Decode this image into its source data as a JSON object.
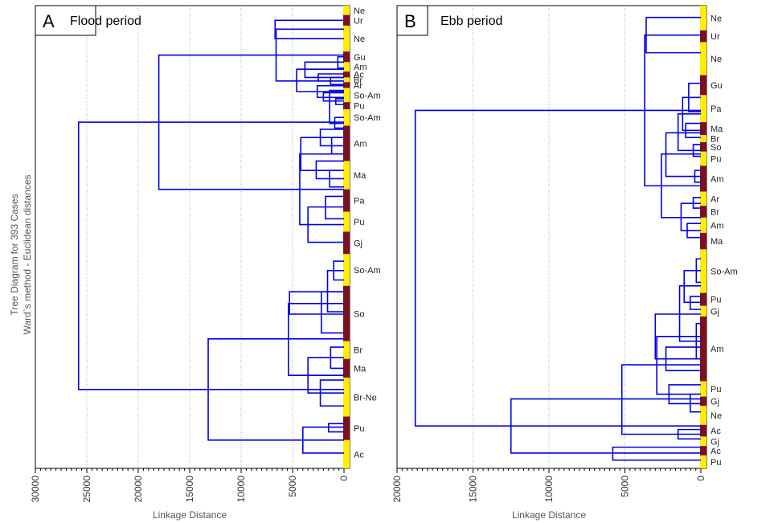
{
  "y_axis_label_line1": "Tree Diagram for 393 Cases",
  "y_axis_label_line2": "Ward`s method - Euclidean distances",
  "colors": {
    "line": "#0000e0",
    "yellow": "#ffee00",
    "maroon": "#7b1020"
  },
  "chart_data": [
    {
      "type": "dendrogram",
      "panel_letter": "A",
      "title": "Flood period",
      "xlabel": "Linkage Distance",
      "xlim": [
        30000,
        0
      ],
      "ticks": [
        30000,
        25000,
        20000,
        15000,
        10000,
        5000,
        0
      ],
      "tick_labels": [
        "30000",
        "25000",
        "20000",
        "15000",
        "10000",
        "5000",
        "0"
      ],
      "grid": "vertical dotted",
      "leaf_groups": [
        {
          "label": "Ne",
          "cases_from": 0,
          "cases_to": 8
        },
        {
          "label": "Ur",
          "cases_from": 8,
          "cases_to": 17
        },
        {
          "label": "Ne",
          "cases_from": 17,
          "cases_to": 39
        },
        {
          "label": "Gu",
          "cases_from": 39,
          "cases_to": 48
        },
        {
          "label": "Am",
          "cases_from": 48,
          "cases_to": 56
        },
        {
          "label": "Ac",
          "cases_from": 56,
          "cases_to": 61
        },
        {
          "label": "Br",
          "cases_from": 61,
          "cases_to": 65
        },
        {
          "label": "Ar",
          "cases_from": 65,
          "cases_to": 70
        },
        {
          "label": "So-Am",
          "cases_from": 70,
          "cases_to": 82
        },
        {
          "label": "Pu",
          "cases_from": 82,
          "cases_to": 88
        },
        {
          "label": "So-Am",
          "cases_from": 88,
          "cases_to": 102
        },
        {
          "label": "Am",
          "cases_from": 102,
          "cases_to": 132
        },
        {
          "label": "Ma",
          "cases_from": 132,
          "cases_to": 156
        },
        {
          "label": "Pa",
          "cases_from": 156,
          "cases_to": 175
        },
        {
          "label": "Pu",
          "cases_from": 175,
          "cases_to": 192
        },
        {
          "label": "Gj",
          "cases_from": 192,
          "cases_to": 211
        },
        {
          "label": "So-Am",
          "cases_from": 211,
          "cases_to": 238
        },
        {
          "label": "So",
          "cases_from": 238,
          "cases_to": 285
        },
        {
          "label": "Br",
          "cases_from": 285,
          "cases_to": 300
        },
        {
          "label": "Ma",
          "cases_from": 300,
          "cases_to": 316
        },
        {
          "label": "Br-Ne",
          "cases_from": 316,
          "cases_to": 349
        },
        {
          "label": "Pu",
          "cases_from": 349,
          "cases_to": 369
        },
        {
          "label": "Ac",
          "cases_from": 369,
          "cases_to": 393
        }
      ],
      "links": [
        {
          "y": [
            12.5,
            28
          ],
          "h": 6700
        },
        {
          "y": [
            43.5,
            53
          ],
          "h": 600
        },
        {
          "y": [
            61,
            67
          ],
          "h": 1300
        },
        {
          "y": [
            58,
            64
          ],
          "h": 2500
        },
        {
          "y": [
            48,
            61
          ],
          "h": 3800
        },
        {
          "y": [
            79,
            84
          ],
          "h": 800
        },
        {
          "y": [
            74,
            81
          ],
          "h": 2000
        },
        {
          "y": [
            68,
            78
          ],
          "h": 2600
        },
        {
          "y": [
            54,
            73
          ],
          "h": 4600
        },
        {
          "y": [
            20,
            64
          ],
          "h": 6600
        },
        {
          "y": [
            95,
            104
          ],
          "h": 900
        },
        {
          "y": [
            72,
            100
          ],
          "h": 1400
        },
        {
          "y": [
            112,
            126
          ],
          "h": 1200
        },
        {
          "y": [
            105,
            119
          ],
          "h": 2300
        },
        {
          "y": [
            140,
            154
          ],
          "h": 1400
        },
        {
          "y": [
            132,
            147
          ],
          "h": 2700
        },
        {
          "y": [
            112,
            140
          ],
          "h": 4200
        },
        {
          "y": [
            162,
            181
          ],
          "h": 1800
        },
        {
          "y": [
            171,
            201
          ],
          "h": 3500
        },
        {
          "y": [
            126,
            186
          ],
          "h": 4300
        },
        {
          "y": [
            42,
            156
          ],
          "h": 18000
        },
        {
          "y": [
            217,
            233
          ],
          "h": 1000
        },
        {
          "y": [
            225,
            260
          ],
          "h": 1600
        },
        {
          "y": [
            243,
            278
          ],
          "h": 2200
        },
        {
          "y": [
            243,
            262
          ],
          "h": 5300
        },
        {
          "y": [
            290,
            308
          ],
          "h": 1300
        },
        {
          "y": [
            318,
            340
          ],
          "h": 2300
        },
        {
          "y": [
            299,
            329
          ],
          "h": 3500
        },
        {
          "y": [
            253,
            314
          ],
          "h": 5400
        },
        {
          "y": [
            355,
            362
          ],
          "h": 1500
        },
        {
          "y": [
            358,
            380
          ],
          "h": 4000
        },
        {
          "y": [
            283,
            369
          ],
          "h": 13200
        },
        {
          "y": [
            99,
            326
          ],
          "h": 25800
        }
      ]
    },
    {
      "type": "dendrogram",
      "panel_letter": "B",
      "title": "Ebb period",
      "xlabel": "Linkage Distance",
      "xlim": [
        20000,
        0
      ],
      "ticks": [
        20000,
        15000,
        10000,
        5000,
        0
      ],
      "tick_labels": [
        "20000",
        "15000",
        "10000",
        "5000",
        "0"
      ],
      "grid": "vertical dotted",
      "leaf_groups": [
        {
          "label": "Ne",
          "cases_from": 0,
          "cases_to": 21
        },
        {
          "label": "Ur",
          "cases_from": 21,
          "cases_to": 31
        },
        {
          "label": "Ne",
          "cases_from": 31,
          "cases_to": 59
        },
        {
          "label": "Gu",
          "cases_from": 59,
          "cases_to": 76
        },
        {
          "label": "Pa",
          "cases_from": 76,
          "cases_to": 99
        },
        {
          "label": "Ma",
          "cases_from": 99,
          "cases_to": 110
        },
        {
          "label": "Br",
          "cases_from": 110,
          "cases_to": 116
        },
        {
          "label": "So",
          "cases_from": 116,
          "cases_to": 124
        },
        {
          "label": "Pu",
          "cases_from": 124,
          "cases_to": 136
        },
        {
          "label": "Am",
          "cases_from": 136,
          "cases_to": 158
        },
        {
          "label": "Ar",
          "cases_from": 158,
          "cases_to": 170
        },
        {
          "label": "Br",
          "cases_from": 170,
          "cases_to": 180
        },
        {
          "label": "Am",
          "cases_from": 180,
          "cases_to": 193
        },
        {
          "label": "Ma",
          "cases_from": 193,
          "cases_to": 207
        },
        {
          "label": "So-Am",
          "cases_from": 207,
          "cases_to": 244
        },
        {
          "label": "Pu",
          "cases_from": 244,
          "cases_to": 255
        },
        {
          "label": "Gj",
          "cases_from": 255,
          "cases_to": 264
        },
        {
          "label": "Am",
          "cases_from": 264,
          "cases_to": 319
        },
        {
          "label": "Pu",
          "cases_from": 319,
          "cases_to": 332
        },
        {
          "label": "Gj",
          "cases_from": 332,
          "cases_to": 340
        },
        {
          "label": "Ne",
          "cases_from": 340,
          "cases_to": 356
        },
        {
          "label": "Ac",
          "cases_from": 356,
          "cases_to": 366
        },
        {
          "label": "Gj",
          "cases_from": 366,
          "cases_to": 374
        },
        {
          "label": "Ac",
          "cases_from": 374,
          "cases_to": 382
        },
        {
          "label": "Pu",
          "cases_from": 382,
          "cases_to": 393
        }
      ],
      "links": [
        {
          "y": [
            10,
            40
          ],
          "h": 3600
        },
        {
          "y": [
            66,
            90
          ],
          "h": 800
        },
        {
          "y": [
            100,
            112
          ],
          "h": 1000
        },
        {
          "y": [
            78,
            106
          ],
          "h": 1200
        },
        {
          "y": [
            118,
            128
          ],
          "h": 500
        },
        {
          "y": [
            92,
            123
          ],
          "h": 1500
        },
        {
          "y": [
            140,
            150
          ],
          "h": 400
        },
        {
          "y": [
            108,
            145
          ],
          "h": 2300
        },
        {
          "y": [
            163,
            172
          ],
          "h": 500
        },
        {
          "y": [
            185,
            197
          ],
          "h": 900
        },
        {
          "y": [
            168,
            191
          ],
          "h": 1300
        },
        {
          "y": [
            126,
            180
          ],
          "h": 2600
        },
        {
          "y": [
            25,
            153
          ],
          "h": 3700
        },
        {
          "y": [
            215,
            235
          ],
          "h": 300
        },
        {
          "y": [
            247,
            258
          ],
          "h": 700
        },
        {
          "y": [
            225,
            252
          ],
          "h": 1100
        },
        {
          "y": [
            270,
            300
          ],
          "h": 300
        },
        {
          "y": [
            238,
            285
          ],
          "h": 1400
        },
        {
          "y": [
            290,
            310
          ],
          "h": 2300
        },
        {
          "y": [
            262,
            300
          ],
          "h": 3000
        },
        {
          "y": [
            330,
            345
          ],
          "h": 700
        },
        {
          "y": [
            322,
            338
          ],
          "h": 2100
        },
        {
          "y": [
            281,
            330
          ],
          "h": 2900
        },
        {
          "y": [
            360,
            368
          ],
          "h": 1500
        },
        {
          "y": [
            305,
            364
          ],
          "h": 5200
        },
        {
          "y": [
            375,
            386
          ],
          "h": 5800
        },
        {
          "y": [
            334,
            380
          ],
          "h": 12500
        },
        {
          "y": [
            89,
            357
          ],
          "h": 18800
        }
      ]
    }
  ]
}
